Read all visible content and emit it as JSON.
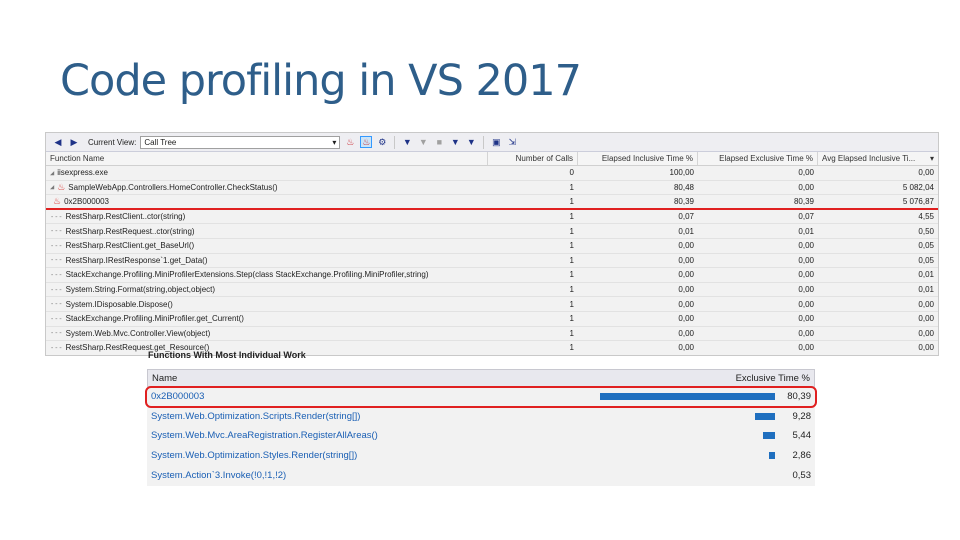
{
  "slide": {
    "title": "Code profiling in VS 2017"
  },
  "toolbar": {
    "current_view_label": "Current View:",
    "current_view_value": "Call Tree"
  },
  "call_tree": {
    "columns": [
      "Function Name",
      "Number of Calls",
      "Elapsed Inclusive Time %",
      "Elapsed Exclusive Time %",
      "Avg Elapsed Inclusive Ti..."
    ],
    "rows": [
      {
        "prefix": "◢",
        "flame": false,
        "name": "iisexpress.exe",
        "calls": "0",
        "inclusive": "100,00",
        "exclusive": "0,00",
        "avg": "0,00"
      },
      {
        "prefix": "  ◢",
        "flame": true,
        "name": "SampleWebApp.Controllers.HomeController.CheckStatus()",
        "calls": "1",
        "inclusive": "80,48",
        "exclusive": "0,00",
        "avg": "5 082,04"
      },
      {
        "prefix": "    ",
        "flame": true,
        "name": "0x2B000003",
        "calls": "1",
        "inclusive": "80,39",
        "exclusive": "80,39",
        "avg": "5 076,87",
        "highlight": true
      },
      {
        "prefix": "   ---",
        "flame": false,
        "name": "RestSharp.RestClient..ctor(string)",
        "calls": "1",
        "inclusive": "0,07",
        "exclusive": "0,07",
        "avg": "4,55"
      },
      {
        "prefix": "   ---",
        "flame": false,
        "name": "RestSharp.RestRequest..ctor(string)",
        "calls": "1",
        "inclusive": "0,01",
        "exclusive": "0,01",
        "avg": "0,50"
      },
      {
        "prefix": "   ---",
        "flame": false,
        "name": "RestSharp.RestClient.get_BaseUrl()",
        "calls": "1",
        "inclusive": "0,00",
        "exclusive": "0,00",
        "avg": "0,05"
      },
      {
        "prefix": "   ---",
        "flame": false,
        "name": "RestSharp.IRestResponse`1.get_Data()",
        "calls": "1",
        "inclusive": "0,00",
        "exclusive": "0,00",
        "avg": "0,05"
      },
      {
        "prefix": "   ---",
        "flame": false,
        "name": "StackExchange.Profiling.MiniProfilerExtensions.Step(class StackExchange.Profiling.MiniProfiler,string)",
        "calls": "1",
        "inclusive": "0,00",
        "exclusive": "0,00",
        "avg": "0,01"
      },
      {
        "prefix": "   ---",
        "flame": false,
        "name": "System.String.Format(string,object,object)",
        "calls": "1",
        "inclusive": "0,00",
        "exclusive": "0,00",
        "avg": "0,01"
      },
      {
        "prefix": "   ---",
        "flame": false,
        "name": "System.IDisposable.Dispose()",
        "calls": "1",
        "inclusive": "0,00",
        "exclusive": "0,00",
        "avg": "0,00"
      },
      {
        "prefix": "   ---",
        "flame": false,
        "name": "StackExchange.Profiling.MiniProfiler.get_Current()",
        "calls": "1",
        "inclusive": "0,00",
        "exclusive": "0,00",
        "avg": "0,00"
      },
      {
        "prefix": "   ---",
        "flame": false,
        "name": "System.Web.Mvc.Controller.View(object)",
        "calls": "1",
        "inclusive": "0,00",
        "exclusive": "0,00",
        "avg": "0,00"
      },
      {
        "prefix": "   ---",
        "flame": false,
        "name": "RestSharp.RestRequest.get_Resource()",
        "calls": "1",
        "inclusive": "0,00",
        "exclusive": "0,00",
        "avg": "0,00"
      }
    ]
  },
  "functions_panel": {
    "caption": "Functions With Most Individual Work",
    "header_name": "Name",
    "header_value": "Exclusive Time %",
    "rows": [
      {
        "name": "0x2B000003",
        "value": "80,39",
        "percent": 80.39,
        "circled": true
      },
      {
        "name": "System.Web.Optimization.Scripts.Render(string[])",
        "value": "9,28",
        "percent": 9.28
      },
      {
        "name": "System.Web.Mvc.AreaRegistration.RegisterAllAreas()",
        "value": "5,44",
        "percent": 5.44
      },
      {
        "name": "System.Web.Optimization.Styles.Render(string[])",
        "value": "2,86",
        "percent": 2.86
      },
      {
        "name": "System.Action`3.Invoke(!0,!1,!2)",
        "value": "0,53",
        "percent": 0.53
      }
    ]
  }
}
